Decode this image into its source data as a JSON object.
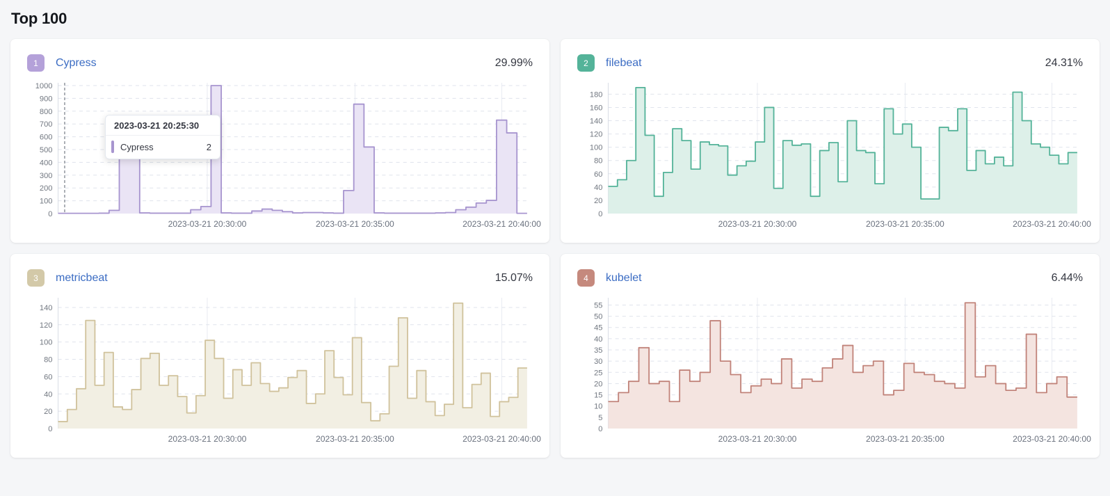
{
  "page": {
    "title": "Top 100"
  },
  "colors": {
    "background": "#f5f6f8",
    "card": "#ffffff",
    "title_text": "#14171c",
    "link": "#3b6cc3",
    "percent_text": "#343741",
    "axis_text": "#69707d",
    "grid": "#dfe3ec",
    "vgrid": "#e9ebf2",
    "axis_line": "#d8dce5",
    "cursor": "#5b6370"
  },
  "x_axis": {
    "labels": [
      "2023-03-21 20:30:00",
      "2023-03-21 20:35:00",
      "2023-03-21 20:40:00"
    ],
    "fractions": [
      0.318,
      0.633,
      0.946
    ]
  },
  "chart_data": [
    {
      "type": "area",
      "title": "Cypress",
      "rank": "1",
      "name": "Cypress",
      "percent": "29.99%",
      "line_color": "#a795cf",
      "fill_color": "#eae4f5",
      "badge_color": "#b4a1d9",
      "y_ticks": [
        0,
        100,
        200,
        300,
        400,
        500,
        600,
        700,
        800,
        900,
        1000
      ],
      "y_max": 1000,
      "ylim": [
        0,
        1000
      ],
      "grid": "on",
      "cursor_fraction": 0.014,
      "tooltip": {
        "title": "2023-03-21 20:25:30",
        "series": "Cypress",
        "value": "2"
      },
      "values": [
        2,
        2,
        2,
        2,
        3,
        25,
        490,
        480,
        5,
        3,
        3,
        3,
        3,
        30,
        55,
        1000,
        5,
        3,
        3,
        20,
        35,
        25,
        15,
        5,
        8,
        8,
        5,
        3,
        180,
        855,
        520,
        5,
        3,
        3,
        3,
        3,
        3,
        5,
        8,
        30,
        50,
        82,
        103,
        730,
        630,
        2
      ]
    },
    {
      "type": "area",
      "title": "filebeat",
      "rank": "2",
      "name": "filebeat",
      "percent": "24.31%",
      "line_color": "#54b399",
      "fill_color": "#ddf0e9",
      "badge_color": "#54b399",
      "y_ticks": [
        0,
        20,
        40,
        60,
        80,
        100,
        120,
        140,
        160,
        180
      ],
      "y_max": 193,
      "ylim": [
        0,
        190
      ],
      "grid": "on",
      "values": [
        41,
        51,
        80,
        190,
        118,
        26,
        62,
        128,
        110,
        67,
        108,
        104,
        102,
        58,
        72,
        79,
        108,
        160,
        38,
        110,
        103,
        105,
        26,
        95,
        107,
        48,
        140,
        95,
        92,
        45,
        158,
        120,
        135,
        100,
        22,
        22,
        130,
        125,
        158,
        65,
        95,
        75,
        85,
        72,
        183,
        140,
        105,
        100,
        88,
        75,
        92
      ]
    },
    {
      "type": "area",
      "title": "metricbeat",
      "rank": "3",
      "name": "metricbeat",
      "percent": "15.07%",
      "line_color": "#d0c29c",
      "fill_color": "#f2efe3",
      "badge_color": "#d3c9a8",
      "y_ticks": [
        0,
        20,
        40,
        60,
        80,
        100,
        120,
        140
      ],
      "y_max": 148,
      "ylim": [
        0,
        145
      ],
      "grid": "on",
      "values": [
        8,
        22,
        46,
        125,
        50,
        88,
        25,
        22,
        45,
        81,
        87,
        50,
        61,
        37,
        18,
        38,
        102,
        81,
        35,
        68,
        50,
        76,
        52,
        43,
        47,
        59,
        67,
        29,
        40,
        90,
        59,
        39,
        105,
        30,
        9,
        17,
        72,
        128,
        35,
        67,
        31,
        15,
        28,
        145,
        24,
        51,
        64,
        14,
        31,
        36,
        70
      ]
    },
    {
      "type": "area",
      "title": "kubelet",
      "rank": "4",
      "name": "kubelet",
      "percent": "6.44%",
      "line_color": "#c1837a",
      "fill_color": "#f4e4e0",
      "badge_color": "#c5897d",
      "y_ticks": [
        0,
        5,
        10,
        15,
        20,
        25,
        30,
        35,
        40,
        45,
        50,
        55
      ],
      "y_max": 57,
      "ylim": [
        0,
        56
      ],
      "grid": "on",
      "values": [
        12,
        16,
        21,
        36,
        20,
        21,
        12,
        26,
        21,
        25,
        48,
        30,
        24,
        16,
        19,
        22,
        20,
        31,
        18,
        22,
        21,
        27,
        31,
        37,
        25,
        28,
        30,
        15,
        17,
        29,
        25,
        24,
        21,
        20,
        18,
        56,
        23,
        28,
        20,
        17,
        18,
        42,
        16,
        20,
        23,
        14
      ]
    }
  ]
}
